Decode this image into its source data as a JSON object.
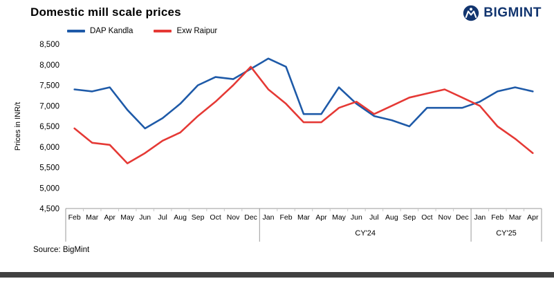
{
  "logo": {
    "text": "BIGMINT",
    "color": "#12356f"
  },
  "footer": {
    "source": "Source: BigMint"
  },
  "chart_data": {
    "type": "line",
    "title": "Domestic mill scale prices",
    "xlabel": "",
    "ylabel": "Prices in INR/t",
    "ylim": [
      4500,
      8500
    ],
    "ytick_step": 500,
    "yticks": [
      "8,500",
      "8,000",
      "7,500",
      "7,000",
      "6,500",
      "6,000",
      "5,500",
      "5,000",
      "4,500"
    ],
    "grid": false,
    "legend_position": "top",
    "categories": [
      "Feb",
      "Mar",
      "Apr",
      "May",
      "Jun",
      "Jul",
      "Aug",
      "Sep",
      "Oct",
      "Nov",
      "Dec",
      "Jan",
      "Feb",
      "Mar",
      "Apr",
      "May",
      "Jun",
      "Jul",
      "Aug",
      "Sep",
      "Oct",
      "Nov",
      "Dec",
      "Jan",
      "Feb",
      "Mar",
      "Apr"
    ],
    "groups": [
      {
        "label": "",
        "start": 0,
        "end": 10
      },
      {
        "label": "CY'24",
        "start": 11,
        "end": 22
      },
      {
        "label": "CY'25",
        "start": 23,
        "end": 26
      }
    ],
    "series": [
      {
        "name": "DAP Kandla",
        "color": "#1e5aa8",
        "values": [
          7400,
          7350,
          7450,
          6900,
          6450,
          6700,
          7050,
          7500,
          7700,
          7650,
          7900,
          8150,
          7950,
          6800,
          6800,
          7450,
          7050,
          6750,
          6650,
          6500,
          6950,
          6950,
          6950,
          7100,
          7350,
          7450,
          7350
        ]
      },
      {
        "name": "Exw Raipur",
        "color": "#e53935",
        "values": [
          6450,
          6100,
          6050,
          5600,
          5850,
          6150,
          6350,
          6750,
          7100,
          7500,
          7950,
          7400,
          7050,
          6600,
          6600,
          6950,
          7100,
          6800,
          7000,
          7200,
          7300,
          7400,
          7200,
          7000,
          6500,
          6200,
          5850
        ]
      }
    ]
  }
}
